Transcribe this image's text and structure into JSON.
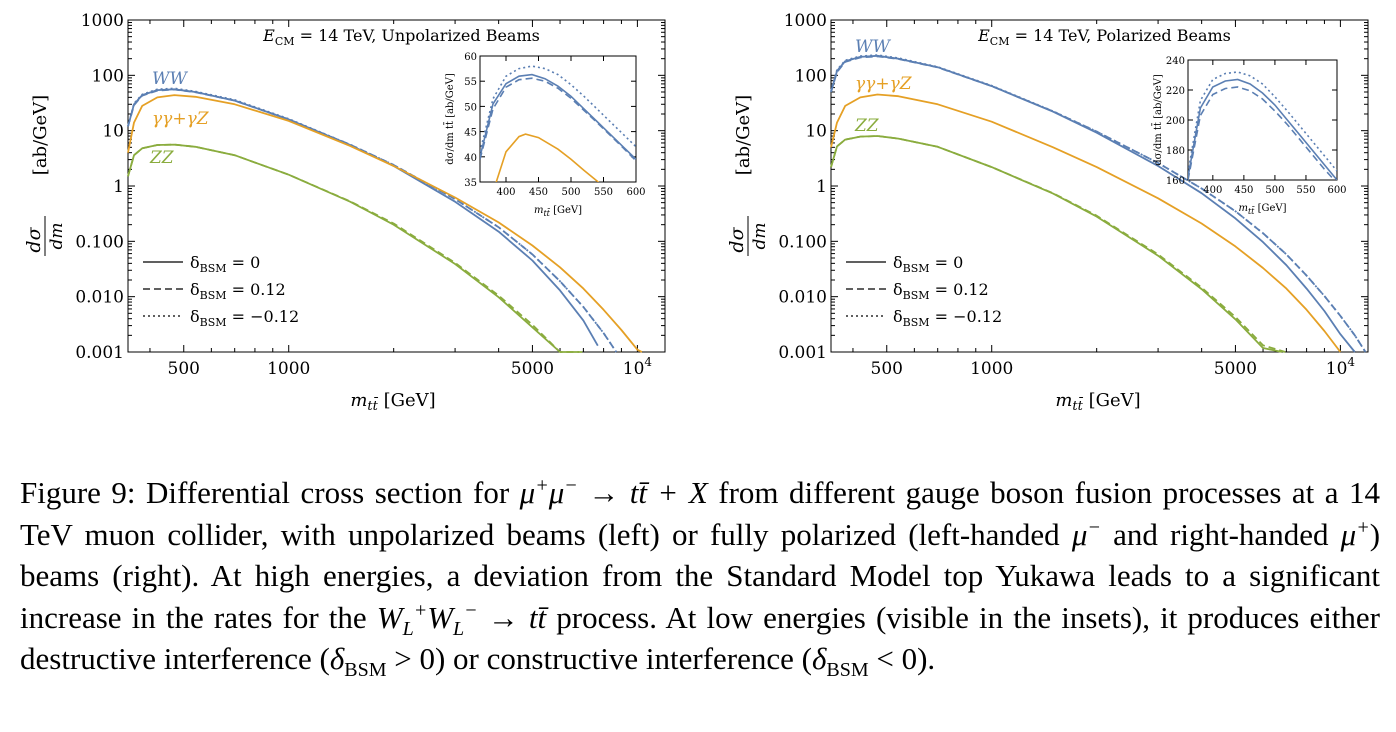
{
  "figure": {
    "caption": {
      "label": "Figure 9:",
      "s1": "Differential cross section for",
      "s2": "from different gauge boson fusion processes at a 14 TeV muon collider, with unpolarized beams (left) or fully polarized (left-handed",
      "s3": "and right-handed",
      "s4": ") beams (right). At high energies, a deviation from the Standard Model top Yukawa leads to a significant increase in the rates for the",
      "s5": "process. At low energies (visible in the insets), it produces either destructive interference (",
      "s6": ") or constructive interference (",
      "s7": ")."
    }
  },
  "colors": {
    "ww": "#5b7fb3",
    "gg": "#e5a025",
    "zz": "#8aac3e"
  },
  "chart_data": [
    {
      "type": "line",
      "title": "E_CM = 14 TeV, Unpolarized Beams",
      "xlabel": "m_tt [GeV]",
      "ylabel": "dσ/dm_tt [ab/GeV]",
      "xscale": "log",
      "yscale": "log",
      "xlim": [
        346,
        12000
      ],
      "ylim": [
        0.001,
        1000
      ],
      "xticks": [
        500,
        1000,
        5000,
        10000
      ],
      "xtick_labels": [
        "500",
        "1000",
        "5000",
        "10^4"
      ],
      "yticks": [
        0.001,
        0.01,
        0.1,
        1,
        10,
        100,
        1000
      ],
      "ytick_labels": [
        "0.001",
        "0.010",
        "0.100",
        "1",
        "10",
        "100",
        "1000"
      ],
      "legend": [
        "δBSM = 0",
        "δBSM = 0.12",
        "δBSM = −0.12"
      ],
      "legend_position": "bottom-left",
      "series": [
        {
          "name": "WW",
          "color_key": "ww",
          "style": "solid",
          "x": [
            346,
            360,
            380,
            420,
            470,
            540,
            700,
            1000,
            1500,
            2000,
            3000,
            4000,
            5000,
            6000,
            7000,
            7700
          ],
          "y": [
            12,
            30,
            44,
            54,
            56,
            50,
            35,
            16,
            5.5,
            2.3,
            0.52,
            0.15,
            0.045,
            0.013,
            0.0037,
            0.0013
          ]
        },
        {
          "name": "WW δ=0.12",
          "color_key": "ww",
          "style": "dashed",
          "x": [
            346,
            360,
            380,
            420,
            470,
            540,
            700,
            1000,
            1500,
            2000,
            3000,
            4000,
            5000,
            6000,
            7000,
            8000,
            8700
          ],
          "y": [
            12,
            29,
            43,
            53,
            55.5,
            49.5,
            35,
            16,
            5.6,
            2.4,
            0.58,
            0.18,
            0.058,
            0.019,
            0.0065,
            0.0022,
            0.001
          ]
        },
        {
          "name": "WW δ=−0.12",
          "color_key": "ww",
          "style": "dotted",
          "x": [
            346,
            360,
            380,
            420,
            470,
            540,
            700,
            1000,
            1500,
            2000,
            3000,
            4000,
            5000,
            6000,
            7000,
            8000,
            8700
          ],
          "y": [
            12,
            31,
            45,
            56,
            58,
            51,
            36,
            16.3,
            5.6,
            2.4,
            0.58,
            0.18,
            0.058,
            0.019,
            0.0065,
            0.0022,
            0.001
          ]
        },
        {
          "name": "γγ+γZ",
          "color_key": "gg",
          "style": "solid",
          "x": [
            346,
            360,
            380,
            420,
            470,
            540,
            700,
            1000,
            1500,
            2000,
            3000,
            4000,
            5000,
            6000,
            7000,
            8000,
            9000,
            10000,
            10300
          ],
          "y": [
            4,
            14,
            28,
            40,
            44,
            41,
            30,
            15,
            5.3,
            2.3,
            0.62,
            0.22,
            0.084,
            0.034,
            0.014,
            0.0058,
            0.0025,
            0.0011,
            0.001
          ]
        },
        {
          "name": "ZZ",
          "color_key": "zz",
          "style": "solid",
          "x": [
            346,
            360,
            380,
            420,
            470,
            540,
            700,
            1000,
            1500,
            2000,
            3000,
            4000,
            5000,
            6000,
            6800
          ],
          "y": [
            1.5,
            3.6,
            4.8,
            5.5,
            5.6,
            5.1,
            3.6,
            1.6,
            0.52,
            0.2,
            0.039,
            0.0098,
            0.0028,
            0.00085,
            0.001
          ]
        },
        {
          "name": "ZZ δ=0.12",
          "color_key": "zz",
          "style": "dashed",
          "x": [
            346,
            360,
            380,
            420,
            470,
            540,
            700,
            1000,
            1500,
            2000,
            3000,
            4000,
            5000,
            6000,
            6950
          ],
          "y": [
            1.5,
            3.6,
            4.8,
            5.5,
            5.6,
            5.1,
            3.6,
            1.6,
            0.53,
            0.21,
            0.041,
            0.0105,
            0.0031,
            0.00095,
            0.001
          ]
        }
      ],
      "labels": [
        "WW",
        "γγ+γZ",
        "ZZ"
      ],
      "inset": {
        "type": "line",
        "xlabel": "m_tt [GeV]",
        "ylabel": "dσ/dm_tt [ab/GeV]",
        "xlim": [
          360,
          600
        ],
        "ylim": [
          35,
          60
        ],
        "xticks": [
          400,
          450,
          500,
          550,
          600
        ],
        "yticks": [
          35,
          40,
          45,
          50,
          55,
          60
        ],
        "series": [
          {
            "name": "WW δ=0",
            "color_key": "ww",
            "style": "solid",
            "x": [
              360,
              380,
              400,
              420,
              440,
              460,
              480,
              500,
              520,
              540,
              560,
              580,
              600
            ],
            "y": [
              40,
              50.5,
              54.5,
              56,
              56.3,
              55.5,
              54,
              52,
              49.5,
              47,
              44.5,
              42,
              39.5
            ]
          },
          {
            "name": "WW δ=0.12",
            "color_key": "ww",
            "style": "dashed",
            "x": [
              360,
              380,
              400,
              420,
              440,
              460,
              480,
              500,
              520,
              540,
              560,
              580,
              600
            ],
            "y": [
              39.5,
              49.5,
              53.8,
              55.3,
              55.6,
              55,
              53.6,
              51.6,
              49.2,
              46.8,
              44.3,
              41.8,
              39.2
            ]
          },
          {
            "name": "WW δ=−0.12",
            "color_key": "ww",
            "style": "dotted",
            "x": [
              360,
              380,
              400,
              420,
              440,
              460,
              480,
              500,
              520,
              540,
              560,
              580,
              600
            ],
            "y": [
              41,
              51.5,
              56,
              57.5,
              58,
              57.5,
              56.3,
              54.3,
              52,
              49.5,
              47,
              44.5,
              42
            ]
          },
          {
            "name": "γγ+γZ",
            "color_key": "gg",
            "style": "solid",
            "x": [
              360,
              380,
              400,
              420,
              430,
              450,
              480,
              500,
              520,
              540,
              550
            ],
            "y": [
              15,
              33,
              41,
              44,
              44.5,
              43.8,
              41.5,
              39.5,
              37.3,
              35.2,
              34
            ]
          }
        ]
      }
    },
    {
      "type": "line",
      "title": "E_CM = 14 TeV, Polarized Beams",
      "xlabel": "m_tt [GeV]",
      "ylabel": "dσ/dm_tt [ab/GeV]",
      "xscale": "log",
      "yscale": "log",
      "xlim": [
        346,
        12000
      ],
      "ylim": [
        0.001,
        1000
      ],
      "xticks": [
        500,
        1000,
        5000,
        10000
      ],
      "xtick_labels": [
        "500",
        "1000",
        "5000",
        "10^4"
      ],
      "yticks": [
        0.001,
        0.01,
        0.1,
        1,
        10,
        100,
        1000
      ],
      "ytick_labels": [
        "0.001",
        "0.010",
        "0.100",
        "1",
        "10",
        "100",
        "1000"
      ],
      "legend": [
        "δBSM = 0",
        "δBSM = 0.12",
        "δBSM = −0.12"
      ],
      "legend_position": "bottom-left",
      "series": [
        {
          "name": "WW",
          "color_key": "ww",
          "style": "solid",
          "x": [
            346,
            360,
            380,
            420,
            470,
            540,
            700,
            1000,
            1500,
            2000,
            3000,
            4000,
            5000,
            6000,
            7000,
            8000,
            9000,
            10000,
            11000
          ],
          "y": [
            50,
            120,
            180,
            215,
            225,
            200,
            140,
            64,
            22,
            9.2,
            2.3,
            0.74,
            0.26,
            0.097,
            0.037,
            0.014,
            0.0055,
            0.0021,
            0.001
          ]
        },
        {
          "name": "WW δ=0.12",
          "color_key": "ww",
          "style": "dashed",
          "x": [
            346,
            360,
            380,
            420,
            470,
            540,
            700,
            1000,
            1500,
            2000,
            3000,
            4000,
            5000,
            6000,
            7000,
            8000,
            9000,
            10000,
            11000,
            11800
          ],
          "y": [
            50,
            115,
            175,
            210,
            220,
            197,
            139,
            64,
            22.3,
            9.6,
            2.6,
            0.9,
            0.35,
            0.14,
            0.058,
            0.024,
            0.0103,
            0.0045,
            0.002,
            0.001
          ]
        },
        {
          "name": "WW δ=−0.12",
          "color_key": "ww",
          "style": "dotted",
          "x": [
            346,
            360,
            380,
            420,
            470,
            540,
            700,
            1000,
            1500,
            2000,
            3000,
            4000,
            5000,
            6000,
            7000,
            8000,
            9000,
            10000,
            11000,
            11800
          ],
          "y": [
            52,
            125,
            186,
            222,
            232,
            205,
            142,
            65,
            22.5,
            9.6,
            2.6,
            0.9,
            0.35,
            0.14,
            0.058,
            0.024,
            0.0103,
            0.0045,
            0.002,
            0.001
          ]
        },
        {
          "name": "γγ+γZ",
          "color_key": "gg",
          "style": "solid",
          "x": [
            346,
            360,
            380,
            420,
            470,
            540,
            700,
            1000,
            1500,
            2000,
            3000,
            4000,
            5000,
            6000,
            7000,
            8000,
            9000,
            10000
          ],
          "y": [
            5,
            14,
            28,
            40,
            45,
            42,
            30,
            14.5,
            5,
            2.2,
            0.6,
            0.21,
            0.081,
            0.033,
            0.014,
            0.0058,
            0.0024,
            0.001
          ]
        },
        {
          "name": "ZZ",
          "color_key": "zz",
          "style": "solid",
          "x": [
            346,
            360,
            380,
            420,
            470,
            540,
            700,
            1000,
            1500,
            2000,
            3000,
            4000,
            5000,
            6000,
            6800
          ],
          "y": [
            2.2,
            5.2,
            6.9,
            7.8,
            8,
            7.2,
            5.1,
            2.2,
            0.73,
            0.28,
            0.055,
            0.0137,
            0.0039,
            0.00118,
            0.001
          ]
        },
        {
          "name": "ZZ δ=0.12",
          "color_key": "zz",
          "style": "dashed",
          "x": [
            346,
            360,
            380,
            420,
            470,
            540,
            700,
            1000,
            1500,
            2000,
            3000,
            4000,
            5000,
            6000,
            6950
          ],
          "y": [
            2.2,
            5.2,
            6.9,
            7.8,
            8,
            7.2,
            5.1,
            2.2,
            0.74,
            0.29,
            0.058,
            0.0146,
            0.0043,
            0.00132,
            0.001
          ]
        }
      ],
      "labels": [
        "WW",
        "γγ+γZ",
        "ZZ"
      ],
      "inset": {
        "type": "line",
        "xlabel": "m_tt [GeV]",
        "ylabel": "dσ/dm_tt [ab/GeV]",
        "xlim": [
          360,
          600
        ],
        "ylim": [
          160,
          240
        ],
        "xticks": [
          400,
          450,
          500,
          550,
          600
        ],
        "yticks": [
          160,
          180,
          200,
          220,
          240
        ],
        "series": [
          {
            "name": "WW δ=0",
            "color_key": "ww",
            "style": "solid",
            "x": [
              360,
              380,
              400,
              420,
              440,
              460,
              480,
              500,
              520,
              540,
              560,
              580,
              600
            ],
            "y": [
              162,
              208,
              222,
              226,
              227,
              224,
              218,
              210,
              200,
              190,
              180,
              170,
              160
            ]
          },
          {
            "name": "WW δ=0.12",
            "color_key": "ww",
            "style": "dashed",
            "x": [
              360,
              380,
              400,
              420,
              440,
              460,
              480,
              500,
              520,
              540,
              560,
              580,
              600
            ],
            "y": [
              160,
              203,
              217,
              221,
              222,
              219.5,
              214,
              206,
              197,
              187,
              177,
              167,
              158
            ]
          },
          {
            "name": "WW δ=−0.12",
            "color_key": "ww",
            "style": "dotted",
            "x": [
              360,
              380,
              400,
              420,
              440,
              460,
              480,
              500,
              520,
              540,
              560,
              580,
              600
            ],
            "y": [
              165,
              213,
              227,
              231,
              232,
              229.5,
              224,
              215.5,
              206,
              196,
              186,
              176,
              166
            ]
          }
        ]
      }
    }
  ]
}
